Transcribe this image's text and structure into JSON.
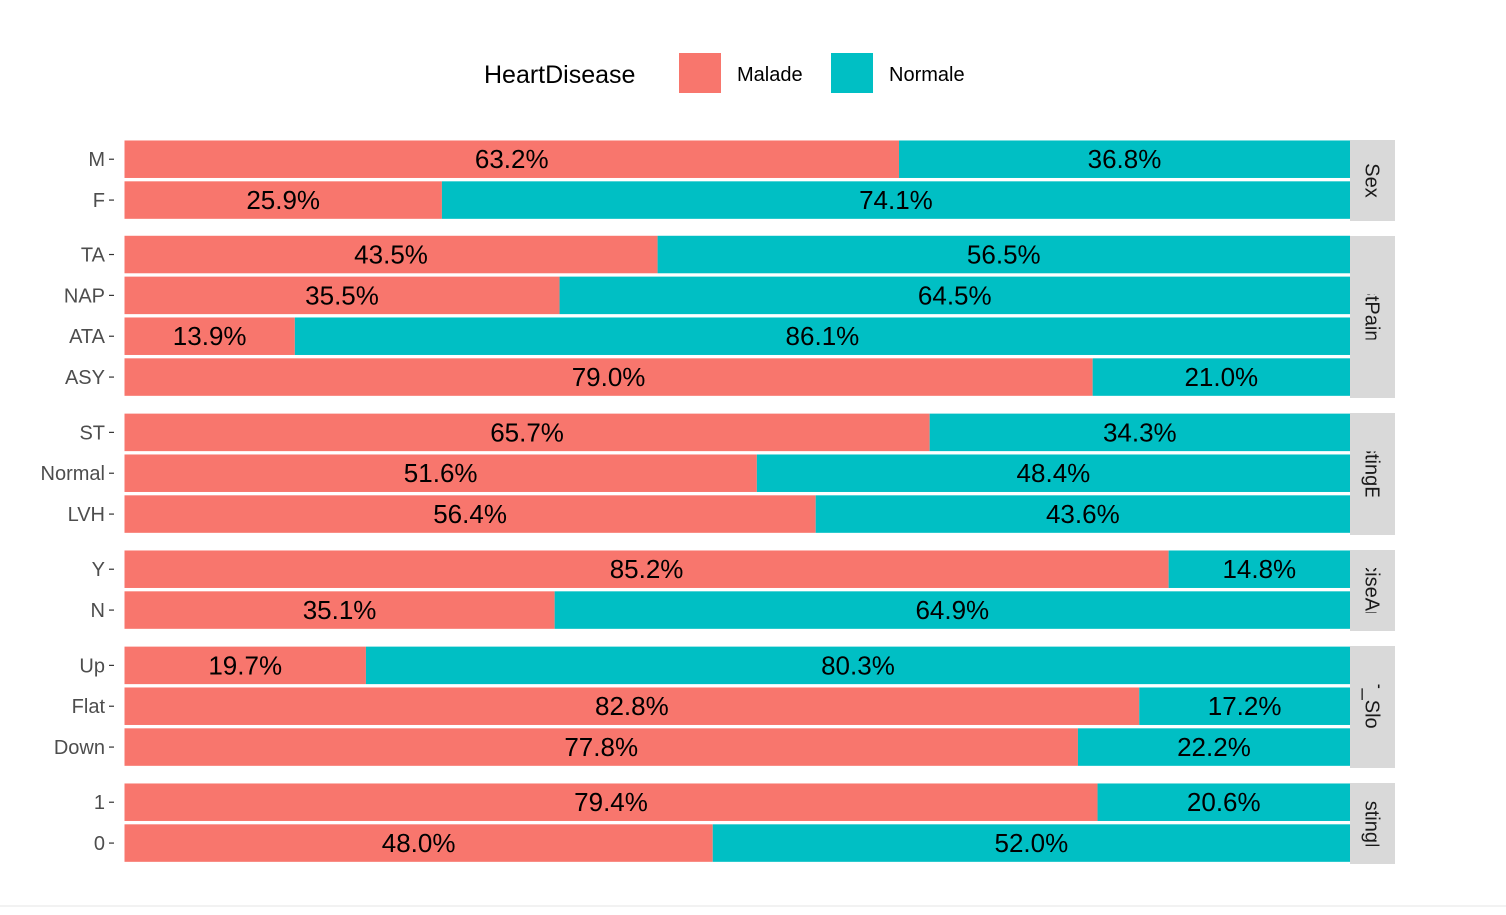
{
  "chart_data": {
    "type": "bar",
    "orientation": "horizontal",
    "stacked": "proportion",
    "legend": {
      "title": "HeartDisease",
      "position": "top",
      "items": [
        {
          "label": "Malade",
          "color": "#F8766D"
        },
        {
          "label": "Normale",
          "color": "#00BFC4"
        }
      ]
    },
    "panels": [
      {
        "strip": "Sex",
        "rows": [
          {
            "category": "M",
            "malade": 63.2,
            "normale": 36.8,
            "malade_label": "63.2%",
            "normale_label": "36.8%"
          },
          {
            "category": "F",
            "malade": 25.9,
            "normale": 74.1,
            "malade_label": "25.9%",
            "normale_label": "74.1%"
          }
        ]
      },
      {
        "strip": "ChestPainType",
        "rows": [
          {
            "category": "TA",
            "malade": 43.5,
            "normale": 56.5,
            "malade_label": "43.5%",
            "normale_label": "56.5%"
          },
          {
            "category": "NAP",
            "malade": 35.5,
            "normale": 64.5,
            "malade_label": "35.5%",
            "normale_label": "64.5%"
          },
          {
            "category": "ATA",
            "malade": 13.9,
            "normale": 86.1,
            "malade_label": "13.9%",
            "normale_label": "86.1%"
          },
          {
            "category": "ASY",
            "malade": 79.0,
            "normale": 21.0,
            "malade_label": "79.0%",
            "normale_label": "21.0%"
          }
        ]
      },
      {
        "strip": "RestingECG",
        "rows": [
          {
            "category": "ST",
            "malade": 65.7,
            "normale": 34.3,
            "malade_label": "65.7%",
            "normale_label": "34.3%"
          },
          {
            "category": "Normal",
            "malade": 51.6,
            "normale": 48.4,
            "malade_label": "51.6%",
            "normale_label": "48.4%"
          },
          {
            "category": "LVH",
            "malade": 56.4,
            "normale": 43.6,
            "malade_label": "56.4%",
            "normale_label": "43.6%"
          }
        ]
      },
      {
        "strip": "ExerciseAngina",
        "rows": [
          {
            "category": "Y",
            "malade": 85.2,
            "normale": 14.8,
            "malade_label": "85.2%",
            "normale_label": "14.8%"
          },
          {
            "category": "N",
            "malade": 35.1,
            "normale": 64.9,
            "malade_label": "35.1%",
            "normale_label": "64.9%"
          }
        ]
      },
      {
        "strip": "ST_Slope",
        "rows": [
          {
            "category": "Up",
            "malade": 19.7,
            "normale": 80.3,
            "malade_label": "19.7%",
            "normale_label": "80.3%"
          },
          {
            "category": "Flat",
            "malade": 82.8,
            "normale": 17.2,
            "malade_label": "82.8%",
            "normale_label": "17.2%"
          },
          {
            "category": "Down",
            "malade": 77.8,
            "normale": 22.2,
            "malade_label": "77.8%",
            "normale_label": "22.2%"
          }
        ]
      },
      {
        "strip": "FastingBS",
        "rows": [
          {
            "category": "1",
            "malade": 79.4,
            "normale": 20.6,
            "malade_label": "79.4%",
            "normale_label": "20.6%"
          },
          {
            "category": "0",
            "malade": 48.0,
            "normale": 52.0,
            "malade_label": "48.0%",
            "normale_label": "52.0%"
          }
        ]
      }
    ],
    "xlim": [
      0,
      100
    ]
  }
}
